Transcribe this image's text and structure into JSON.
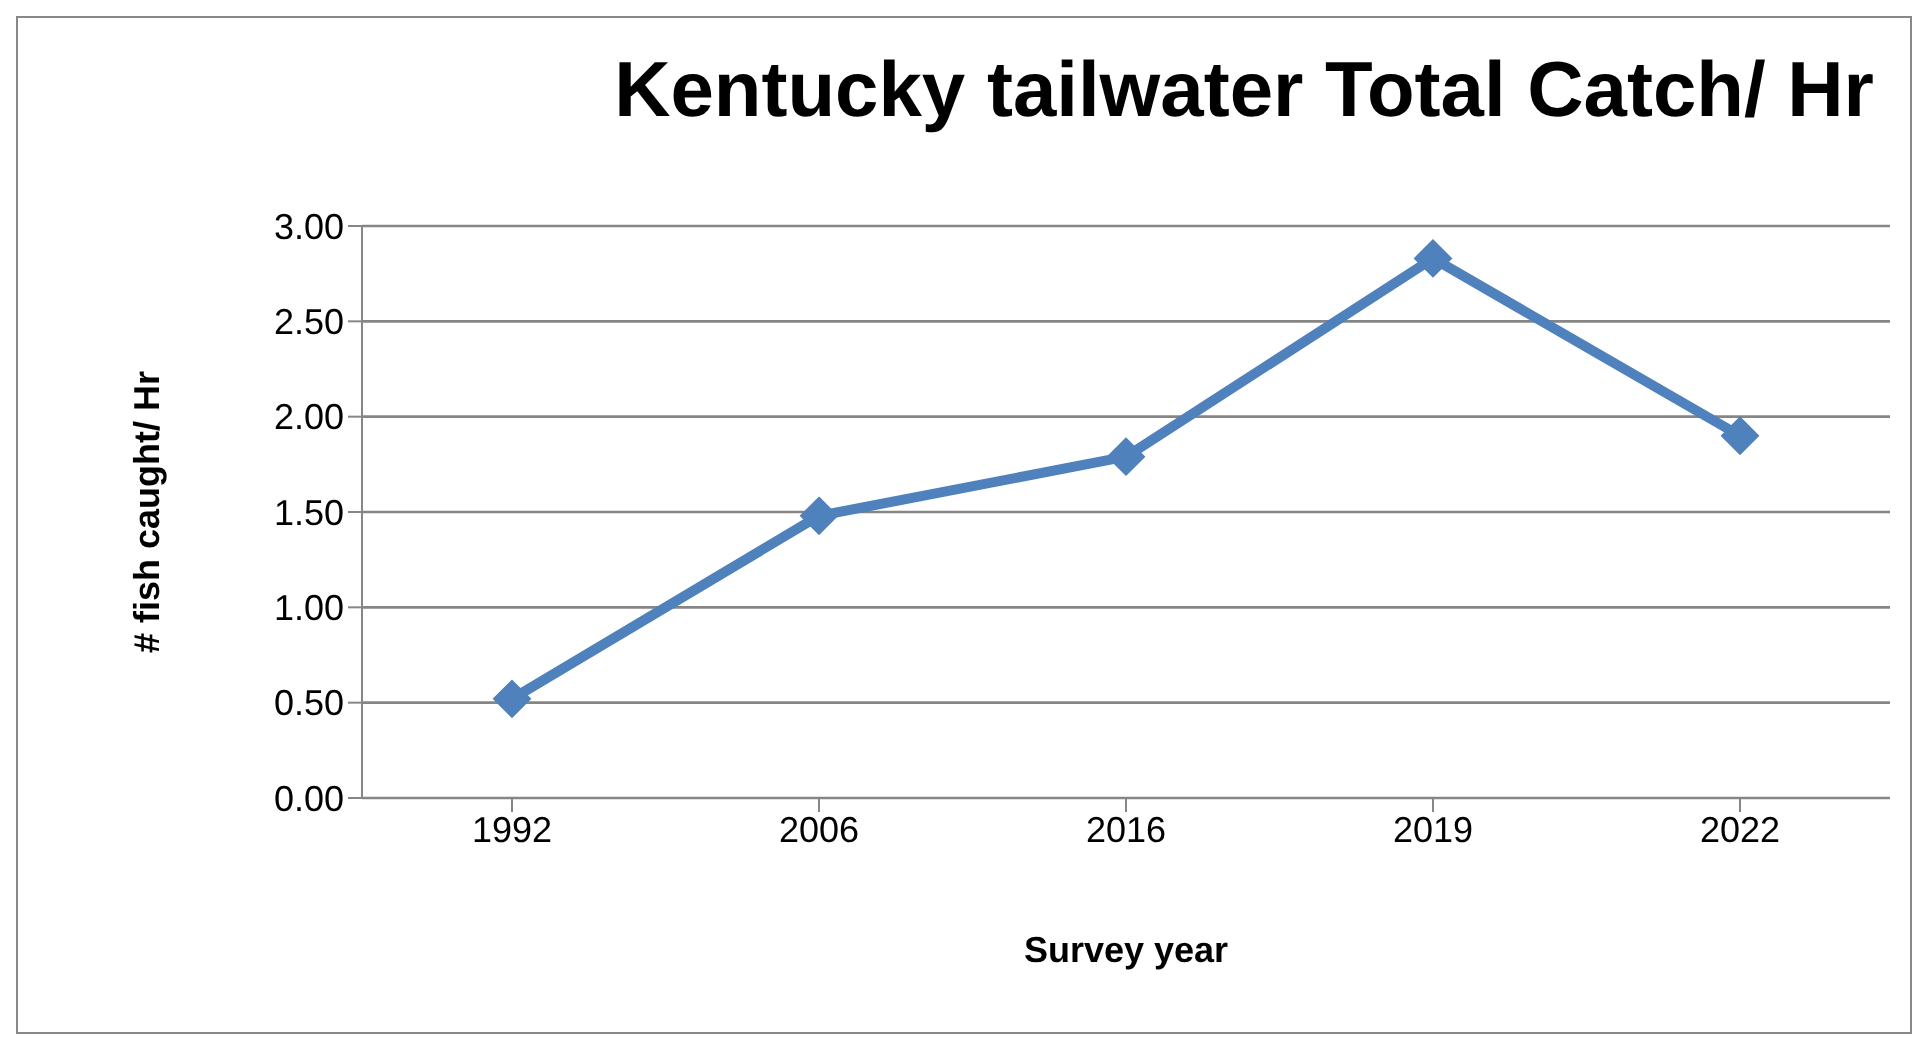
{
  "chart_data": {
    "type": "line",
    "title": "Kentucky tailwater Total Catch/ Hr",
    "xlabel": "Survey year",
    "ylabel": "# fish caught/ Hr",
    "categories": [
      "1992",
      "2006",
      "2016",
      "2019",
      "2022"
    ],
    "series": [
      {
        "color": "#4f81bd",
        "values": [
          0.52,
          1.48,
          1.79,
          2.83,
          1.9
        ]
      }
    ],
    "ylim": [
      0,
      3
    ],
    "yticks": [
      {
        "value": 0,
        "label": "0.00"
      },
      {
        "value": 0.5,
        "label": "0.50"
      },
      {
        "value": 1,
        "label": "1.00"
      },
      {
        "value": 1.5,
        "label": "1.50"
      },
      {
        "value": 2,
        "label": "2.00"
      },
      {
        "value": 2.5,
        "label": "2.50"
      },
      {
        "value": 3,
        "label": "3.00"
      }
    ],
    "grid": "y",
    "marker": "diamond",
    "line_style": "solid",
    "legend": false
  }
}
